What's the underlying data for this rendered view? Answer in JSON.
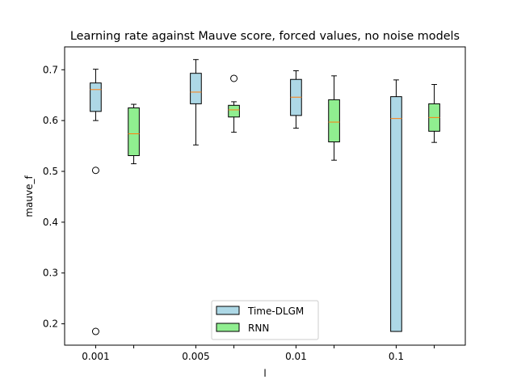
{
  "chart_data": {
    "type": "boxplot",
    "title": "Learning rate against Mauve score, forced values, no noise models",
    "xlabel": "l",
    "ylabel": "mauve_f",
    "categories": [
      "0.001",
      "0.005",
      "0.01",
      "0.1"
    ],
    "ylim": [
      0.158,
      0.745
    ],
    "yticks": [
      "0.2",
      "0.3",
      "0.4",
      "0.5",
      "0.6",
      "0.7"
    ],
    "legend_position": "lower center",
    "series": [
      {
        "name": "Time-DLGM",
        "color": "#add8e6",
        "boxes": [
          {
            "whislo": 0.6,
            "q1": 0.618,
            "med": 0.661,
            "q3": 0.674,
            "whishi": 0.701,
            "fliers": [
              0.502,
              0.185
            ]
          },
          {
            "whislo": 0.552,
            "q1": 0.633,
            "med": 0.656,
            "q3": 0.693,
            "whishi": 0.72,
            "fliers": []
          },
          {
            "whislo": 0.585,
            "q1": 0.61,
            "med": 0.646,
            "q3": 0.681,
            "whishi": 0.698,
            "fliers": []
          },
          {
            "whislo": 0.185,
            "q1": 0.185,
            "med": 0.604,
            "q3": 0.647,
            "whishi": 0.68,
            "fliers": []
          }
        ]
      },
      {
        "name": "RNN",
        "color": "#90ee90",
        "boxes": [
          {
            "whislo": 0.515,
            "q1": 0.531,
            "med": 0.574,
            "q3": 0.625,
            "whishi": 0.632,
            "fliers": []
          },
          {
            "whislo": 0.577,
            "q1": 0.607,
            "med": 0.621,
            "q3": 0.63,
            "whishi": 0.637,
            "fliers": [
              0.683
            ]
          },
          {
            "whislo": 0.522,
            "q1": 0.558,
            "med": 0.597,
            "q3": 0.641,
            "whishi": 0.688,
            "fliers": []
          },
          {
            "whislo": 0.557,
            "q1": 0.579,
            "med": 0.606,
            "q3": 0.633,
            "whishi": 0.671,
            "fliers": []
          }
        ]
      }
    ]
  }
}
